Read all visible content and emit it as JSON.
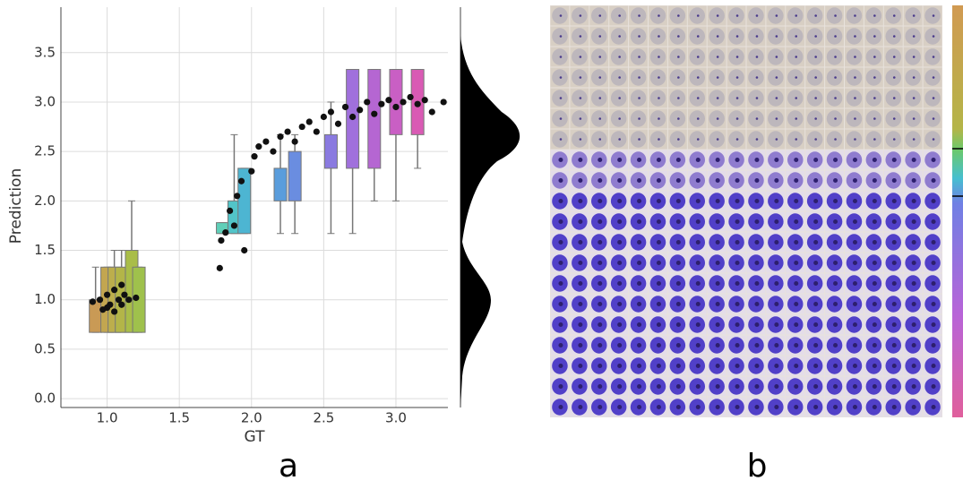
{
  "chart_data": {
    "type": "scatter",
    "xlabel": "GT",
    "ylabel": "Prediction",
    "xlim": [
      0.68,
      3.36
    ],
    "ylim": [
      -0.09,
      3.96
    ],
    "xticks": [
      {
        "value": 1,
        "label": "1.0"
      },
      {
        "value": 1.5,
        "label": "1.5"
      },
      {
        "value": 2,
        "label": "2.0"
      },
      {
        "value": 2.5,
        "label": "2.5"
      },
      {
        "value": 3,
        "label": "3.0"
      }
    ],
    "yticks": [
      {
        "value": 0,
        "label": "0.0"
      },
      {
        "value": 0.5,
        "label": "0.5"
      },
      {
        "value": 1,
        "label": "1.0"
      },
      {
        "value": 1.5,
        "label": "1.5"
      },
      {
        "value": 2,
        "label": "2.0"
      },
      {
        "value": 2.5,
        "label": "2.5"
      },
      {
        "value": 3,
        "label": "3.0"
      },
      {
        "value": 3.5,
        "label": "3.5"
      }
    ],
    "grid": true,
    "point_color": "#111111",
    "boxes": [
      {
        "x": 0.92,
        "q1": 0.67,
        "q3": 1.0,
        "low": 0.67,
        "high": 1.33,
        "color": "#c99a55"
      },
      {
        "x": 1.0,
        "q1": 0.67,
        "q3": 1.33,
        "low": 0.67,
        "high": 1.33,
        "color": "#c3a650"
      },
      {
        "x": 1.05,
        "q1": 0.67,
        "q3": 1.33,
        "low": 0.67,
        "high": 1.5,
        "color": "#bcae4c"
      },
      {
        "x": 1.1,
        "q1": 0.67,
        "q3": 1.33,
        "low": 0.67,
        "high": 1.5,
        "color": "#b3b548"
      },
      {
        "x": 1.17,
        "q1": 0.67,
        "q3": 1.5,
        "low": 0.67,
        "high": 2.0,
        "color": "#a9bd48"
      },
      {
        "x": 1.22,
        "q1": 0.67,
        "q3": 1.33,
        "low": 0.67,
        "high": 1.33,
        "color": "#9fc14c"
      },
      {
        "x": 1.8,
        "q1": 1.67,
        "q3": 1.78,
        "low": 1.67,
        "high": 1.78,
        "color": "#5fcfb8"
      },
      {
        "x": 1.88,
        "q1": 1.67,
        "q3": 2.0,
        "low": 1.67,
        "high": 2.67,
        "color": "#52c4c8"
      },
      {
        "x": 1.95,
        "q1": 1.67,
        "q3": 2.33,
        "low": 1.67,
        "high": 2.33,
        "color": "#4db5d2"
      },
      {
        "x": 2.2,
        "q1": 2.0,
        "q3": 2.33,
        "low": 1.67,
        "high": 2.67,
        "color": "#5a9ddc"
      },
      {
        "x": 2.3,
        "q1": 2.0,
        "q3": 2.5,
        "low": 1.67,
        "high": 2.67,
        "color": "#6a8de0"
      },
      {
        "x": 2.55,
        "q1": 2.33,
        "q3": 2.67,
        "low": 1.67,
        "high": 3.0,
        "color": "#8a7ae0"
      },
      {
        "x": 2.7,
        "q1": 2.33,
        "q3": 3.33,
        "low": 1.67,
        "high": 3.33,
        "color": "#a070dc"
      },
      {
        "x": 2.85,
        "q1": 2.33,
        "q3": 3.33,
        "low": 2.0,
        "high": 3.33,
        "color": "#b566d2"
      },
      {
        "x": 3.0,
        "q1": 2.67,
        "q3": 3.33,
        "low": 2.0,
        "high": 3.33,
        "color": "#c95fc4"
      },
      {
        "x": 3.15,
        "q1": 2.67,
        "q3": 3.33,
        "low": 2.33,
        "high": 3.33,
        "color": "#d95ab4"
      }
    ],
    "x": [
      0.9,
      0.95,
      0.97,
      1.0,
      1.02,
      1.05,
      1.08,
      1.1,
      1.12,
      1.15,
      1.2,
      1.0,
      1.05,
      1.1,
      1.78,
      1.79,
      1.82,
      1.85,
      1.88,
      1.9,
      1.93,
      1.95,
      2.0,
      2.02,
      2.05,
      2.1,
      2.15,
      2.2,
      2.25,
      2.3,
      2.35,
      2.4,
      2.45,
      2.5,
      2.55,
      2.6,
      2.65,
      2.7,
      2.75,
      2.8,
      2.85,
      2.9,
      2.95,
      3.0,
      3.05,
      3.1,
      3.15,
      3.2,
      3.25,
      3.33
    ],
    "values": [
      0.98,
      1.0,
      0.9,
      1.05,
      0.95,
      1.1,
      1.0,
      1.15,
      1.05,
      1.0,
      1.02,
      0.92,
      0.88,
      0.95,
      1.32,
      1.6,
      1.68,
      1.9,
      1.75,
      2.05,
      2.2,
      1.5,
      2.3,
      2.45,
      2.55,
      2.6,
      2.5,
      2.65,
      2.7,
      2.6,
      2.75,
      2.8,
      2.7,
      2.85,
      2.9,
      2.78,
      2.95,
      2.85,
      2.92,
      3.0,
      2.88,
      2.98,
      3.02,
      2.95,
      3.0,
      3.05,
      2.98,
      3.02,
      2.9,
      3.0
    ],
    "panel_a_label": "a",
    "panel_b_label": "b"
  }
}
